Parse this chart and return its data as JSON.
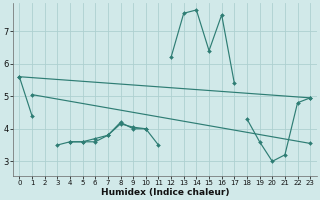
{
  "xlabel": "Humidex (Indice chaleur)",
  "background_color": "#d1e9e9",
  "grid_color": "#aed0d0",
  "line_color": "#2e7d74",
  "xlim": [
    -0.5,
    23.5
  ],
  "ylim": [
    2.55,
    7.85
  ],
  "yticks": [
    3,
    4,
    5,
    6,
    7
  ],
  "xticks": [
    0,
    1,
    2,
    3,
    4,
    5,
    6,
    7,
    8,
    9,
    10,
    11,
    12,
    13,
    14,
    15,
    16,
    17,
    18,
    19,
    20,
    21,
    22,
    23
  ],
  "lines": [
    {
      "segments": [
        {
          "x": [
            0,
            1
          ],
          "y": [
            5.6,
            4.4
          ]
        },
        {
          "x": [
            3,
            4,
            5,
            6,
            7,
            8,
            9,
            10,
            11
          ],
          "y": [
            3.5,
            3.6,
            3.6,
            3.7,
            3.8,
            4.2,
            4.0,
            4.0,
            3.5
          ]
        }
      ]
    },
    {
      "segments": [
        {
          "x": [
            12,
            13,
            14,
            15,
            16,
            17
          ],
          "y": [
            6.2,
            7.55,
            7.65,
            6.4,
            7.5,
            5.4
          ]
        }
      ]
    },
    {
      "segments": [
        {
          "x": [
            4,
            5,
            6,
            7,
            8,
            9,
            10
          ],
          "y": [
            3.6,
            3.6,
            3.6,
            3.8,
            4.15,
            4.05,
            4.0
          ]
        },
        {
          "x": [
            18,
            19,
            20,
            21,
            22,
            23
          ],
          "y": [
            4.3,
            3.6,
            3.0,
            3.2,
            4.8,
            4.95
          ]
        }
      ]
    },
    {
      "segments": [
        {
          "x": [
            0,
            1,
            10,
            11,
            18,
            19,
            20,
            21,
            22,
            23
          ],
          "y": [
            5.6,
            5.05,
            4.15,
            4.0,
            4.3,
            3.6,
            3.0,
            3.2,
            4.8,
            4.95
          ]
        }
      ]
    },
    {
      "segments": [
        {
          "x": [
            0,
            23
          ],
          "y": [
            5.6,
            4.95
          ]
        }
      ]
    },
    {
      "segments": [
        {
          "x": [
            1,
            11,
            17,
            23
          ],
          "y": [
            5.05,
            4.0,
            5.4,
            4.95
          ]
        }
      ]
    }
  ]
}
